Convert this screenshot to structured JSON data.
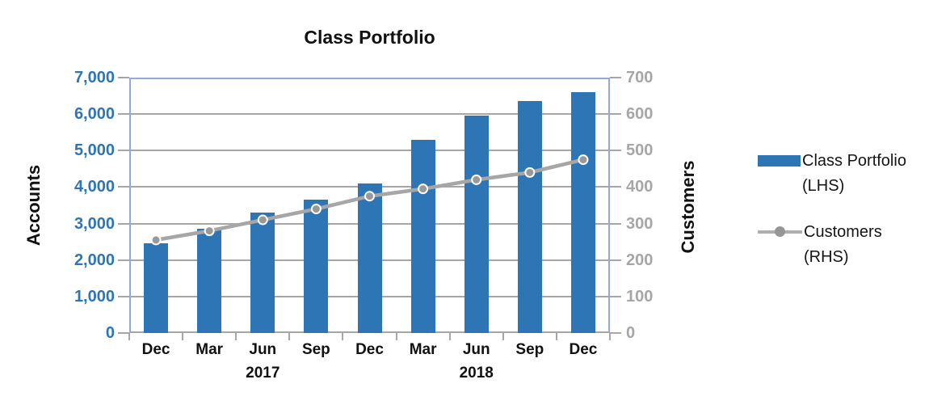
{
  "chart_data": {
    "type": "combo",
    "title": "Class Portfolio",
    "categories": [
      "Dec",
      "Mar",
      "Jun",
      "Sep",
      "Dec",
      "Mar",
      "Jun",
      "Sep",
      "Dec"
    ],
    "year_labels": [
      {
        "label": "2017",
        "category_index": 2
      },
      {
        "label": "2018",
        "category_index": 6
      }
    ],
    "series": [
      {
        "name": "Class Portfolio (LHS)",
        "type": "bar",
        "axis": "left",
        "color": "#2E75B6",
        "values": [
          2450,
          2850,
          3300,
          3650,
          4100,
          5300,
          5950,
          6350,
          6600
        ]
      },
      {
        "name": "Customers (RHS)",
        "type": "line",
        "axis": "right",
        "color": "#A6A6A6",
        "marker_color": "#999999",
        "values": [
          255,
          280,
          310,
          340,
          375,
          395,
          420,
          440,
          475
        ]
      }
    ],
    "left_axis": {
      "title": "Accounts",
      "min": 0,
      "max": 7000,
      "step": 1000,
      "tick_label_color": "#2E75B6"
    },
    "right_axis": {
      "title": "Customers",
      "min": 0,
      "max": 700,
      "step": 100,
      "tick_label_color": "#A6A6A6"
    },
    "legend": [
      {
        "line1": "Class Portfolio",
        "line2": "(LHS)",
        "marker": "bar"
      },
      {
        "line1": "Customers",
        "line2": "(RHS)",
        "marker": "line"
      }
    ],
    "colors": {
      "plot_border": "#8FAADC",
      "gridline": "#A6A6A6",
      "axis_line": "#A6A6A6",
      "background": "#FFFFFF"
    }
  }
}
